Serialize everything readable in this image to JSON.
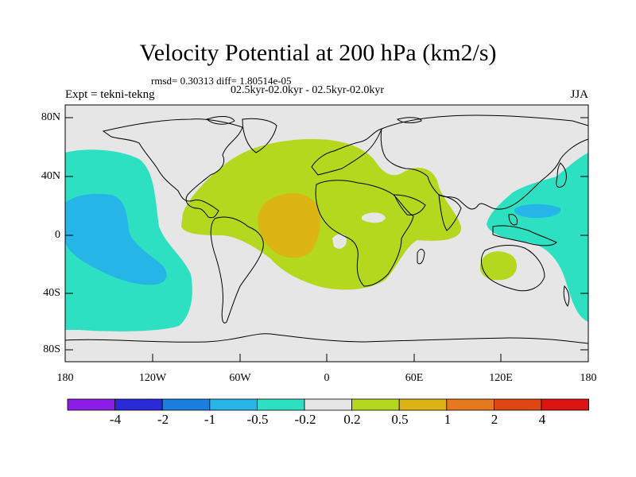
{
  "header": {
    "title": "Velocity Potential at 200 hPa (km2/s)",
    "stats": "rmsd= 0.30313 diff= 1.80514e-05",
    "comparison": "02.5kyr-02.0kyr - 02.5kyr-02.0kyr",
    "experiment": "Expt = tekni-tekng",
    "season": "JJA"
  },
  "axes": {
    "y_ticks": [
      "80N",
      "40N",
      "0",
      "40S",
      "80S"
    ],
    "x_ticks": [
      "180",
      "120W",
      "60W",
      "0",
      "60E",
      "120E",
      "180"
    ]
  },
  "colorbar": {
    "labels": [
      "-4",
      "-2",
      "-1",
      "-0.5",
      "-0.2",
      "0.2",
      "0.5",
      "1",
      "2",
      "4"
    ],
    "colors": [
      "#8a1ee6",
      "#2a2ad8",
      "#1a7fe0",
      "#25b5e6",
      "#2ee0c2",
      "#e6e6e6",
      "#b4d81e",
      "#dcb414",
      "#e6781e",
      "#e04614",
      "#dc1414"
    ]
  },
  "field_colors": {
    "land_line": "#000000",
    "background": "#e6e6e6"
  }
}
